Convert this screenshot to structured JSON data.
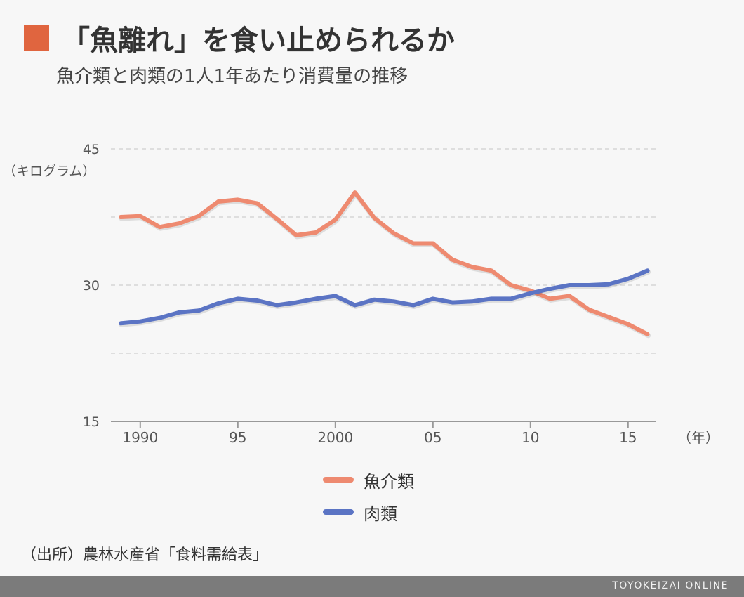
{
  "header": {
    "title": "「魚離れ」を食い止められるか",
    "subtitle": "魚介類と肉類の1人1年あたり消費量の推移"
  },
  "colors": {
    "accent": "#e0653f",
    "fish": "#ee8a70",
    "meat": "#5b74c4",
    "grid": "#d6d6d6",
    "axis": "#999999"
  },
  "chart_data": {
    "type": "line",
    "ylabel": "（キログラム）",
    "xlabel": "（年）",
    "ylim": [
      15,
      45
    ],
    "xlim": [
      1988,
      2017
    ],
    "y_ticks": [
      {
        "value": 45,
        "label": "45"
      },
      {
        "value": 30,
        "label": "30"
      },
      {
        "value": 15,
        "label": "15"
      }
    ],
    "y_gridlines": [
      45,
      37.5,
      30,
      22.5
    ],
    "x_ticks": [
      {
        "value": 1990,
        "label": "1990"
      },
      {
        "value": 1995,
        "label": "95"
      },
      {
        "value": 2000,
        "label": "2000"
      },
      {
        "value": 2005,
        "label": "05"
      },
      {
        "value": 2010,
        "label": "10"
      },
      {
        "value": 2015,
        "label": "15"
      }
    ],
    "grid": "horizontal dashed",
    "legend_position": "bottom",
    "x": [
      1989,
      1990,
      1991,
      1992,
      1993,
      1994,
      1995,
      1996,
      1997,
      1998,
      1999,
      2000,
      2001,
      2002,
      2003,
      2004,
      2005,
      2006,
      2007,
      2008,
      2009,
      2010,
      2011,
      2012,
      2013,
      2014,
      2015,
      2016
    ],
    "series": [
      {
        "name": "魚介類",
        "color": "#ee8a70",
        "values": [
          37.5,
          37.6,
          36.4,
          36.8,
          37.6,
          39.2,
          39.4,
          39.0,
          37.3,
          35.5,
          35.8,
          37.2,
          40.2,
          37.4,
          35.7,
          34.6,
          34.6,
          32.8,
          32.0,
          31.6,
          30.0,
          29.4,
          28.5,
          28.8,
          27.3,
          26.5,
          25.7,
          24.6
        ]
      },
      {
        "name": "肉類",
        "color": "#5b74c4",
        "values": [
          25.8,
          26.0,
          26.4,
          27.0,
          27.2,
          28.0,
          28.5,
          28.3,
          27.8,
          28.1,
          28.5,
          28.8,
          27.8,
          28.4,
          28.2,
          27.8,
          28.5,
          28.1,
          28.2,
          28.5,
          28.5,
          29.1,
          29.6,
          30.0,
          30.0,
          30.1,
          30.7,
          31.6
        ]
      }
    ]
  },
  "source": "（出所）農林水産省「食料需給表」",
  "footer": {
    "brand": "TOYOKEIZAI ONLINE"
  }
}
